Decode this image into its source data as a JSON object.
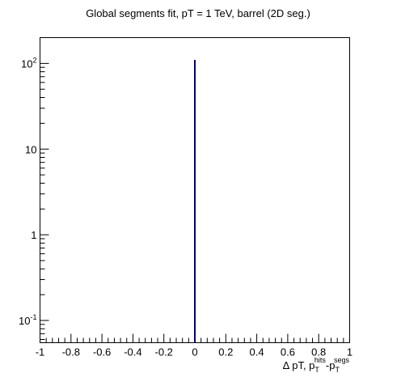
{
  "chart_data": {
    "type": "bar",
    "title": "Global segments fit, pT = 1 TeV, barrel (2D seg.)",
    "xlabel": {
      "prefix": "Δ pT, p",
      "sub1": "T",
      "sup1": "hits",
      "mid": "-p",
      "sub2": "T",
      "sup2": "segs"
    },
    "ylabel": "",
    "x_range": [
      -1,
      1
    ],
    "y_range": [
      0.055,
      200
    ],
    "y_scale": "log",
    "x_ticks": [
      {
        "value": -1,
        "label": "-1"
      },
      {
        "value": -0.8,
        "label": "-0.8"
      },
      {
        "value": -0.6,
        "label": "-0.6"
      },
      {
        "value": -0.4,
        "label": "-0.4"
      },
      {
        "value": -0.2,
        "label": "-0.2"
      },
      {
        "value": 0,
        "label": "0"
      },
      {
        "value": 0.2,
        "label": "0.2"
      },
      {
        "value": 0.4,
        "label": "0.4"
      },
      {
        "value": 0.6,
        "label": "0.6"
      },
      {
        "value": 0.8,
        "label": "0.8"
      },
      {
        "value": 1,
        "label": "1"
      }
    ],
    "y_ticks": [
      {
        "value": 0.1,
        "base": "10",
        "exp": "-1"
      },
      {
        "value": 1,
        "base": "1",
        "exp": ""
      },
      {
        "value": 10,
        "base": "10",
        "exp": ""
      },
      {
        "value": 100,
        "base": "10",
        "exp": "2"
      }
    ],
    "series": [
      {
        "x": [
          0
        ],
        "values": [
          110
        ],
        "color": "#00007f"
      }
    ],
    "grid": false,
    "legend": "none"
  }
}
